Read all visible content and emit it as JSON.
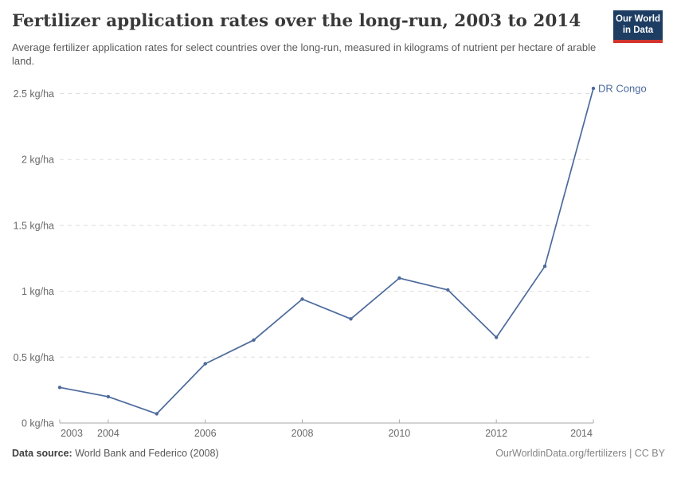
{
  "header": {
    "title": "Fertilizer application rates over the long-run, 2003 to 2014",
    "subtitle": "Average fertilizer application rates for select countries over the long-run, measured in kilograms of nutrient per hectare of arable land.",
    "logo": {
      "line1": "Our World",
      "line2": "in Data",
      "bg_color": "#1d3d63",
      "stripe_color": "#d0342c"
    }
  },
  "chart_data": {
    "type": "line",
    "title": "Fertilizer application rates over the long-run, 2003 to 2014",
    "unit": "kg/ha",
    "x": [
      2003,
      2004,
      2005,
      2006,
      2007,
      2008,
      2009,
      2010,
      2011,
      2012,
      2013,
      2014
    ],
    "series": [
      {
        "name": "DR Congo",
        "color": "#4C6A9C",
        "values": [
          0.27,
          0.2,
          0.07,
          0.45,
          0.63,
          0.94,
          0.79,
          1.1,
          1.01,
          0.65,
          1.19,
          2.54
        ]
      }
    ],
    "xlim": [
      2003,
      2014
    ],
    "ylim": [
      0,
      2.5
    ],
    "xticks": [
      2003,
      2004,
      2006,
      2008,
      2010,
      2012,
      2014
    ],
    "yticks": [
      {
        "value": 0,
        "label": "0 kg/ha"
      },
      {
        "value": 0.5,
        "label": "0.5 kg/ha"
      },
      {
        "value": 1,
        "label": "1 kg/ha"
      },
      {
        "value": 1.5,
        "label": "1.5 kg/ha"
      },
      {
        "value": 2,
        "label": "2 kg/ha"
      },
      {
        "value": 2.5,
        "label": "2.5 kg/ha"
      }
    ],
    "grid": "horizontal-dashed",
    "legend": "end-of-line-label"
  },
  "footer": {
    "datasource_label": "Data source:",
    "datasource_value": " World Bank and Federico (2008)",
    "link": "OurWorldinData.org/fertilizers | CC BY"
  }
}
